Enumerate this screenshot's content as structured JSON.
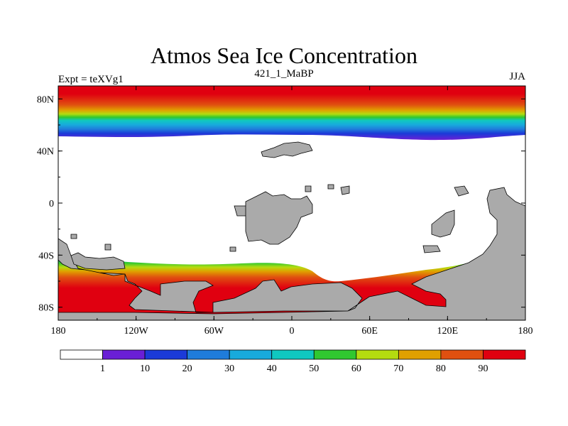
{
  "plot": {
    "title": "Atmos Sea Ice Concentration",
    "subtitle": "421_1_MaBP",
    "left_string": "Expt = teXVg1",
    "right_string": "JJA"
  },
  "axes": {
    "lon_ticks": [
      {
        "value": -180,
        "label": "180"
      },
      {
        "value": -120,
        "label": "120W"
      },
      {
        "value": -60,
        "label": "60W"
      },
      {
        "value": 0,
        "label": "0"
      },
      {
        "value": 60,
        "label": "60E"
      },
      {
        "value": 120,
        "label": "120E"
      },
      {
        "value": 180,
        "label": "180"
      }
    ],
    "lat_ticks": [
      {
        "value": 80,
        "label": "80N"
      },
      {
        "value": 40,
        "label": "40N"
      },
      {
        "value": 0,
        "label": "0"
      },
      {
        "value": -40,
        "label": "40S"
      },
      {
        "value": -80,
        "label": "80S"
      }
    ],
    "lon_range": [
      -180,
      180
    ],
    "lat_range": [
      -90,
      90
    ]
  },
  "colorbar": {
    "labels": [
      "1",
      "10",
      "20",
      "30",
      "40",
      "50",
      "60",
      "70",
      "80",
      "90"
    ],
    "colors": [
      "#ffffff",
      "#6a1fd6",
      "#1b3ad8",
      "#1f7cdb",
      "#18aadc",
      "#10c8c0",
      "#30c830",
      "#b4dc10",
      "#e0a000",
      "#e05010",
      "#e00010"
    ],
    "land_color": "#aaaaaa"
  }
}
